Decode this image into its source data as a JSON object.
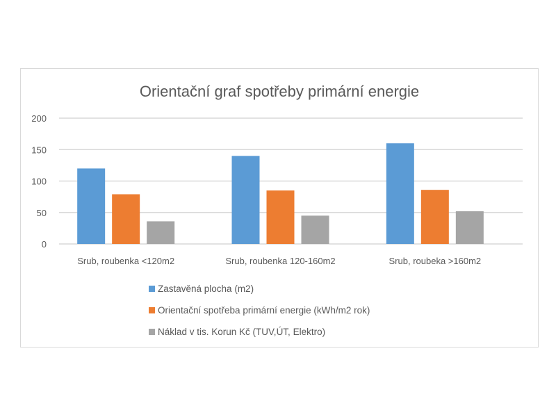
{
  "chart_data": {
    "type": "bar",
    "title": "Orientační graf spotřeby primární energie",
    "categories": [
      "Srub, roubenka <120m2",
      "Srub, roubenka 120-160m2",
      "Srub, roubeka >160m2"
    ],
    "series": [
      {
        "name": "Zastavěná plocha (m2)",
        "values": [
          120,
          140,
          160
        ],
        "color": "#5b9bd5"
      },
      {
        "name": "Orientační spotřeba primární energie (kWh/m2 rok)",
        "values": [
          79,
          85,
          86
        ],
        "color": "#ed7d31"
      },
      {
        "name": "Náklad v  tis. Korun Kč (TUV,ÚT, Elektro)",
        "values": [
          36,
          45,
          52
        ],
        "color": "#a5a5a5"
      }
    ],
    "yticks": [
      "0",
      "50",
      "100",
      "150",
      "200"
    ],
    "ylim": [
      0,
      200
    ],
    "grid": true,
    "legend_position": "bottom"
  }
}
